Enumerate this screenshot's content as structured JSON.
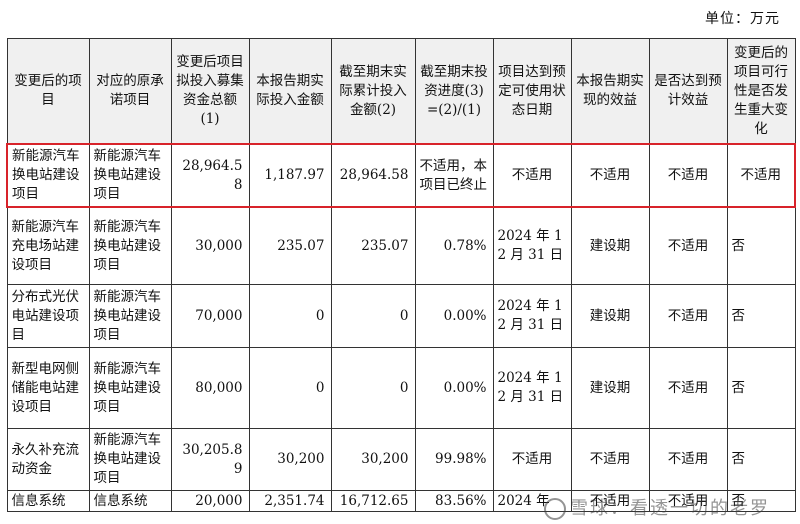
{
  "unit_label": "单位：万元",
  "headers": [
    "变更后的项目",
    "对应的原承诺项目",
    "变更后项目拟投入募集资金总额(1)",
    "本报告期实际投入金额",
    "截至期末实际累计投入金额(2)",
    "截至期末投资进度(3)=(2)/(1)",
    "项目达到预定可使用状态日期",
    "本报告期实现的效益",
    "是否达到预计效益",
    "变更后的项目可行性是否发生重大变化"
  ],
  "rows": [
    {
      "project": "新能源汽车换电站建设项目",
      "original": "新能源汽车换电站建设项目",
      "planned": "28,964.58",
      "period": "1,187.97",
      "cumulative": "28,964.58",
      "progress": "不适用，本项目已终止",
      "date": "不适用",
      "benefit": "不适用",
      "meets": "不适用",
      "change": "不适用"
    },
    {
      "project": "新能源汽车充电场站建设项目",
      "original": "新能源汽车换电站建设项目",
      "planned": "30,000",
      "period": "235.07",
      "cumulative": "235.07",
      "progress": "0.78%",
      "date": "2024 年 12 月 31 日",
      "benefit": "建设期",
      "meets": "不适用",
      "change": "否"
    },
    {
      "project": "分布式光伏电站建设项目",
      "original": "新能源汽车换电站建设项目",
      "planned": "70,000",
      "period": "0",
      "cumulative": "0",
      "progress": "0.00%",
      "date": "2024 年 12 月 31 日",
      "benefit": "建设期",
      "meets": "不适用",
      "change": "否"
    },
    {
      "project": "新型电网侧储能电站建设项目",
      "original": "新能源汽车换电站建设项目",
      "planned": "80,000",
      "period": "0",
      "cumulative": "0",
      "progress": "0.00%",
      "date": "2024 年 12 月 31 日",
      "benefit": "建设期",
      "meets": "不适用",
      "change": "否"
    },
    {
      "project": "永久补充流动资金",
      "original": "新能源汽车换电站建设项目",
      "planned": "30,205.89",
      "period": "30,200",
      "cumulative": "30,200",
      "progress": "99.98%",
      "date": "不适用",
      "benefit": "不适用",
      "meets": "不适用",
      "change": "否"
    },
    {
      "project": "信息系统",
      "original": "信息系统",
      "planned": "20,000",
      "period": "2,351.74",
      "cumulative": "16,712.65",
      "progress": "83.56%",
      "date": "2024 年",
      "benefit": "不适用",
      "meets": "不适用",
      "change": "否"
    }
  ],
  "highlight_color": "#d8232a",
  "watermark_text": "雪球：看透一切的老罗"
}
